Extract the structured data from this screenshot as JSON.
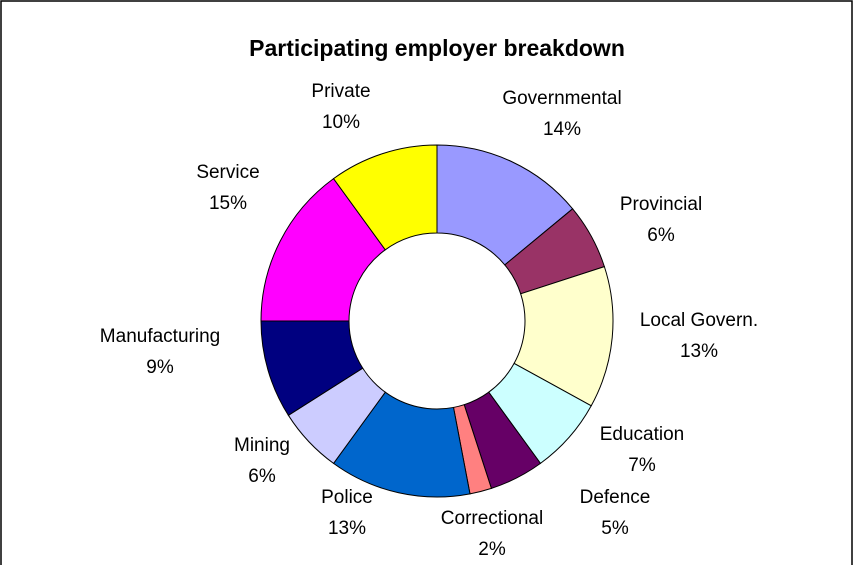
{
  "chart_data": {
    "type": "pie",
    "style": "doughnut",
    "title": "Participating employer breakdown",
    "slices": [
      {
        "label": "Governmental",
        "percent_label": "14%",
        "value": 14,
        "color": "#9999FF"
      },
      {
        "label": "Provincial",
        "percent_label": "6%",
        "value": 6,
        "color": "#993366"
      },
      {
        "label": "Local Govern.",
        "percent_label": "13%",
        "value": 13,
        "color": "#FFFFCC"
      },
      {
        "label": "Education",
        "percent_label": "7%",
        "value": 7,
        "color": "#CCFFFF"
      },
      {
        "label": "Defence",
        "percent_label": "5%",
        "value": 5,
        "color": "#660066"
      },
      {
        "label": "Correctional",
        "percent_label": "2%",
        "value": 2,
        "color": "#FF8080"
      },
      {
        "label": "Police",
        "percent_label": "13%",
        "value": 13,
        "color": "#0066CC"
      },
      {
        "label": "Mining",
        "percent_label": "6%",
        "value": 6,
        "color": "#CCCCFF"
      },
      {
        "label": "Manufacturing",
        "percent_label": "9%",
        "value": 9,
        "color": "#000080"
      },
      {
        "label": "Service",
        "percent_label": "15%",
        "value": 15,
        "color": "#FF00FF"
      },
      {
        "label": "Private",
        "percent_label": "10%",
        "value": 10,
        "color": "#FFFF00"
      }
    ]
  }
}
